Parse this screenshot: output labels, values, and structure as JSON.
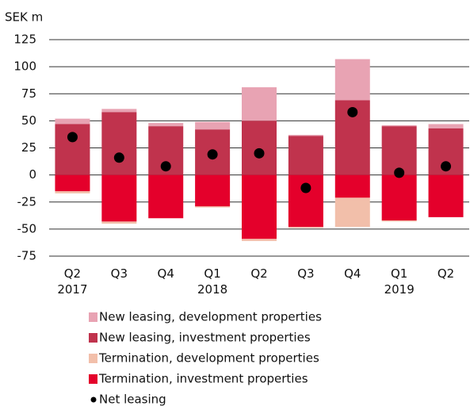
{
  "chart_data": {
    "type": "bar",
    "stacked": true,
    "y_label": "SEK m",
    "categories": [
      "Q2 2017",
      "Q3",
      "Q4",
      "Q1 2018",
      "Q2",
      "Q3",
      "Q4",
      "Q1 2019",
      "Q2"
    ],
    "series": [
      {
        "name": "New leasing, development properties",
        "color": "#e8a3b3",
        "values": [
          5,
          3,
          3,
          7,
          31,
          1,
          38,
          1,
          4
        ],
        "stack_on": 1
      },
      {
        "name": "New leasing, investment properties",
        "color": "#c0334d",
        "values": [
          47,
          58,
          45,
          42,
          50,
          36,
          69,
          45,
          43
        ]
      },
      {
        "name": "Termination, development properties",
        "color": "#f2bfaa",
        "values": [
          -2,
          -2,
          0,
          -1,
          -2,
          -1,
          -27,
          -1,
          0
        ],
        "stack_on": 3
      },
      {
        "name": "Termination, investment properties",
        "color": "#e4002b",
        "values": [
          -15,
          -43,
          -40,
          -29,
          -59,
          -48,
          -21,
          -42,
          -39
        ]
      },
      {
        "name": "Net leasing",
        "type": "scatter",
        "color": "#000000",
        "values": [
          35,
          16,
          8,
          19,
          20,
          -12,
          58,
          2,
          8
        ]
      }
    ],
    "ylim": [
      -75,
      125
    ],
    "yticks": [
      -75,
      -50,
      -25,
      0,
      25,
      50,
      75,
      100,
      125
    ],
    "grid": true
  }
}
